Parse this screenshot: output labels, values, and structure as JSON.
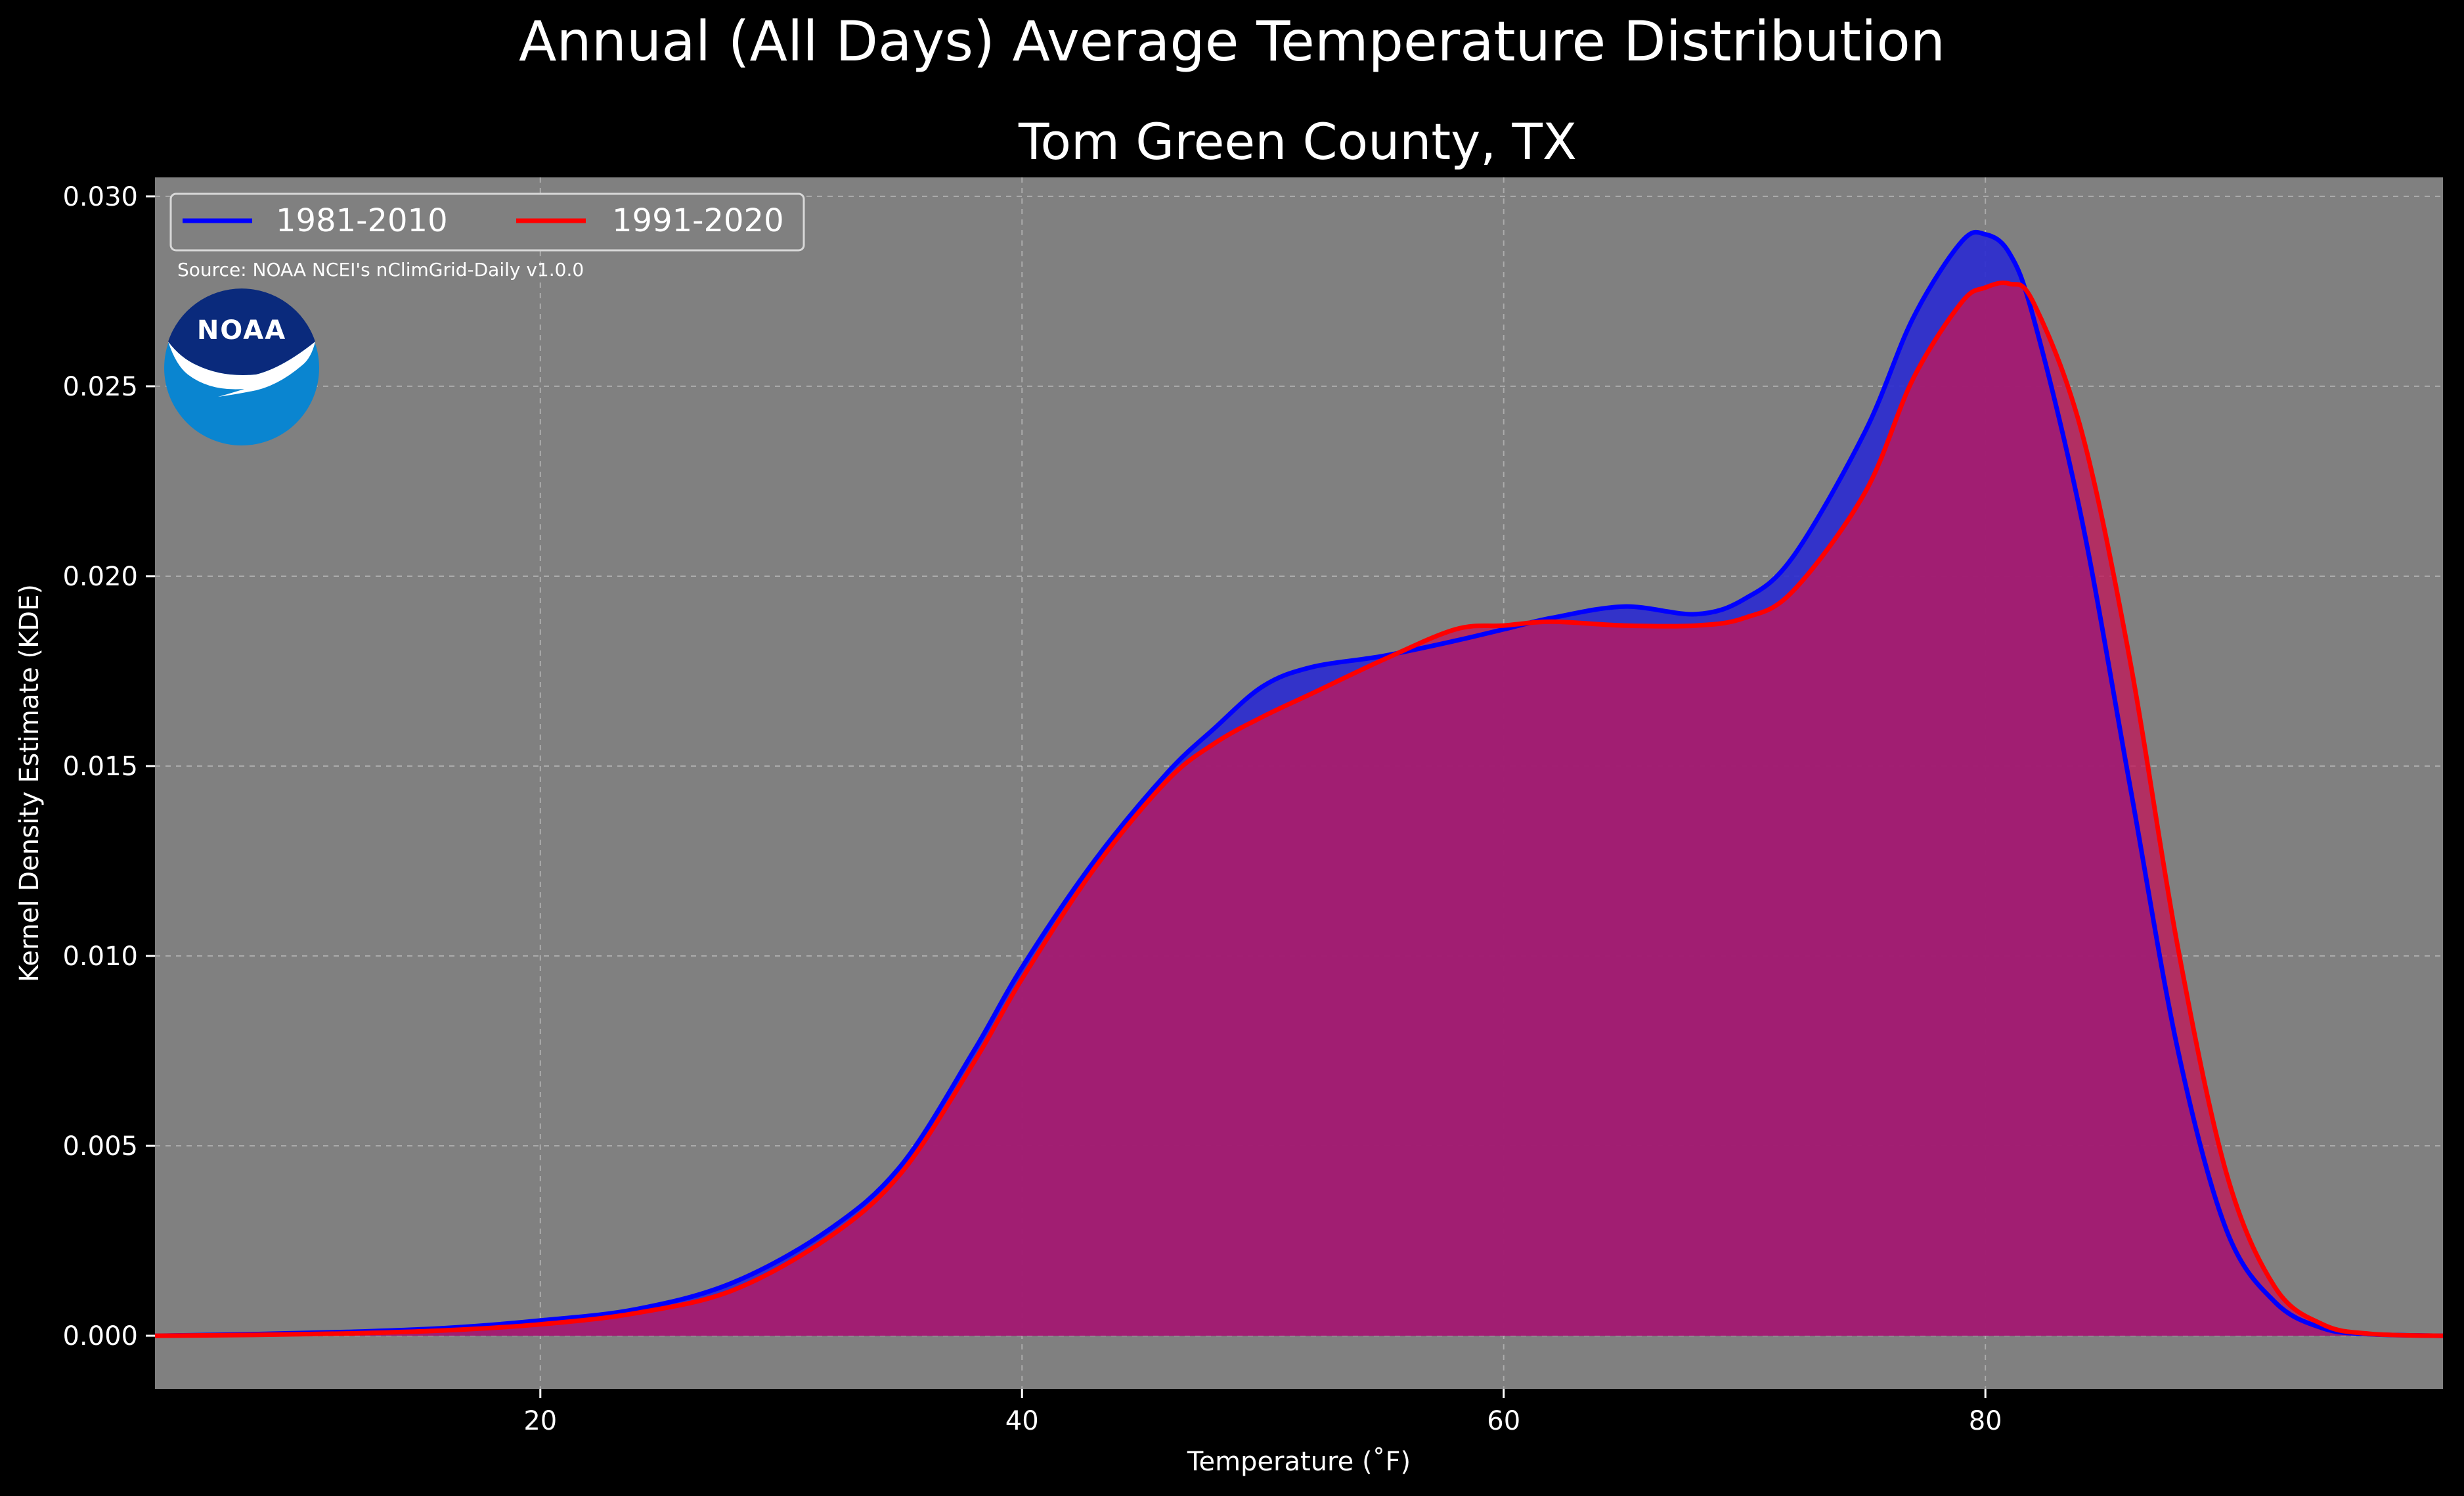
{
  "chart_data": {
    "type": "area",
    "title": "Annual (All Days) Average Temperature Distribution",
    "subtitle": "Tom Green County, TX",
    "xlabel": "Temperature (˚F)",
    "ylabel": "Kernel Density Estimate (KDE)",
    "xlim": [
      4,
      99
    ],
    "ylim": [
      -0.0014,
      0.0305
    ],
    "x_ticks": [
      20,
      40,
      60,
      80
    ],
    "x_tick_labels": [
      "20",
      "40",
      "60",
      "80"
    ],
    "y_ticks": [
      0.0,
      0.005,
      0.01,
      0.015,
      0.02,
      0.025,
      0.03
    ],
    "y_tick_labels": [
      "0.000",
      "0.005",
      "0.010",
      "0.015",
      "0.020",
      "0.025",
      "0.030"
    ],
    "grid": true,
    "legend_position": "top-left",
    "annotation": "Source: NOAA NCEI's nClimGrid-Daily v1.0.0",
    "logo_text": "NOAA",
    "colors": {
      "background": "#000000",
      "plot_background": "#808080",
      "series_1981_2010": "#0000ff",
      "series_1991_2020": "#ff0000",
      "fill_1981_2010": "#2a2ad0",
      "fill_1991_2020": "#c0185a",
      "logo_dark": "#0a2a7c",
      "logo_light": "#0a85d0"
    },
    "series": [
      {
        "name": "1981-2010",
        "x": [
          4,
          8,
          12,
          16,
          20,
          24,
          28,
          32,
          35,
          38,
          40,
          43,
          46,
          48,
          50,
          52,
          55,
          58,
          60,
          62,
          65,
          68,
          70,
          72,
          75,
          77,
          79,
          80,
          81,
          82,
          84,
          86,
          88,
          90,
          92,
          94,
          96,
          99
        ],
        "y": [
          0.0,
          4e-05,
          0.0001,
          0.0002,
          0.0004,
          0.0007,
          0.0014,
          0.0028,
          0.0045,
          0.0075,
          0.0097,
          0.0125,
          0.0148,
          0.016,
          0.0171,
          0.0176,
          0.0179,
          0.0183,
          0.0186,
          0.0189,
          0.0192,
          0.019,
          0.0194,
          0.0205,
          0.0238,
          0.0268,
          0.0288,
          0.029,
          0.0285,
          0.0268,
          0.0215,
          0.0145,
          0.0075,
          0.0028,
          0.0009,
          0.0002,
          4e-05,
          0.0
        ]
      },
      {
        "name": "1991-2020",
        "x": [
          4,
          8,
          12,
          16,
          20,
          24,
          28,
          32,
          35,
          38,
          40,
          43,
          46,
          48,
          50,
          52,
          55,
          58,
          60,
          62,
          65,
          68,
          70,
          72,
          75,
          77,
          79,
          80,
          81,
          82,
          84,
          86,
          88,
          90,
          92,
          94,
          96,
          99
        ],
        "y": [
          0.0,
          2e-05,
          6e-05,
          0.00014,
          0.0003,
          0.0006,
          0.0012,
          0.0026,
          0.0043,
          0.0072,
          0.0094,
          0.0123,
          0.0146,
          0.0156,
          0.0163,
          0.0169,
          0.0178,
          0.0186,
          0.0187,
          0.0188,
          0.0187,
          0.0187,
          0.0189,
          0.0196,
          0.0222,
          0.0252,
          0.0272,
          0.0276,
          0.0277,
          0.0272,
          0.0238,
          0.0178,
          0.0102,
          0.0043,
          0.0013,
          0.0003,
          5e-05,
          0.0
        ]
      }
    ]
  }
}
